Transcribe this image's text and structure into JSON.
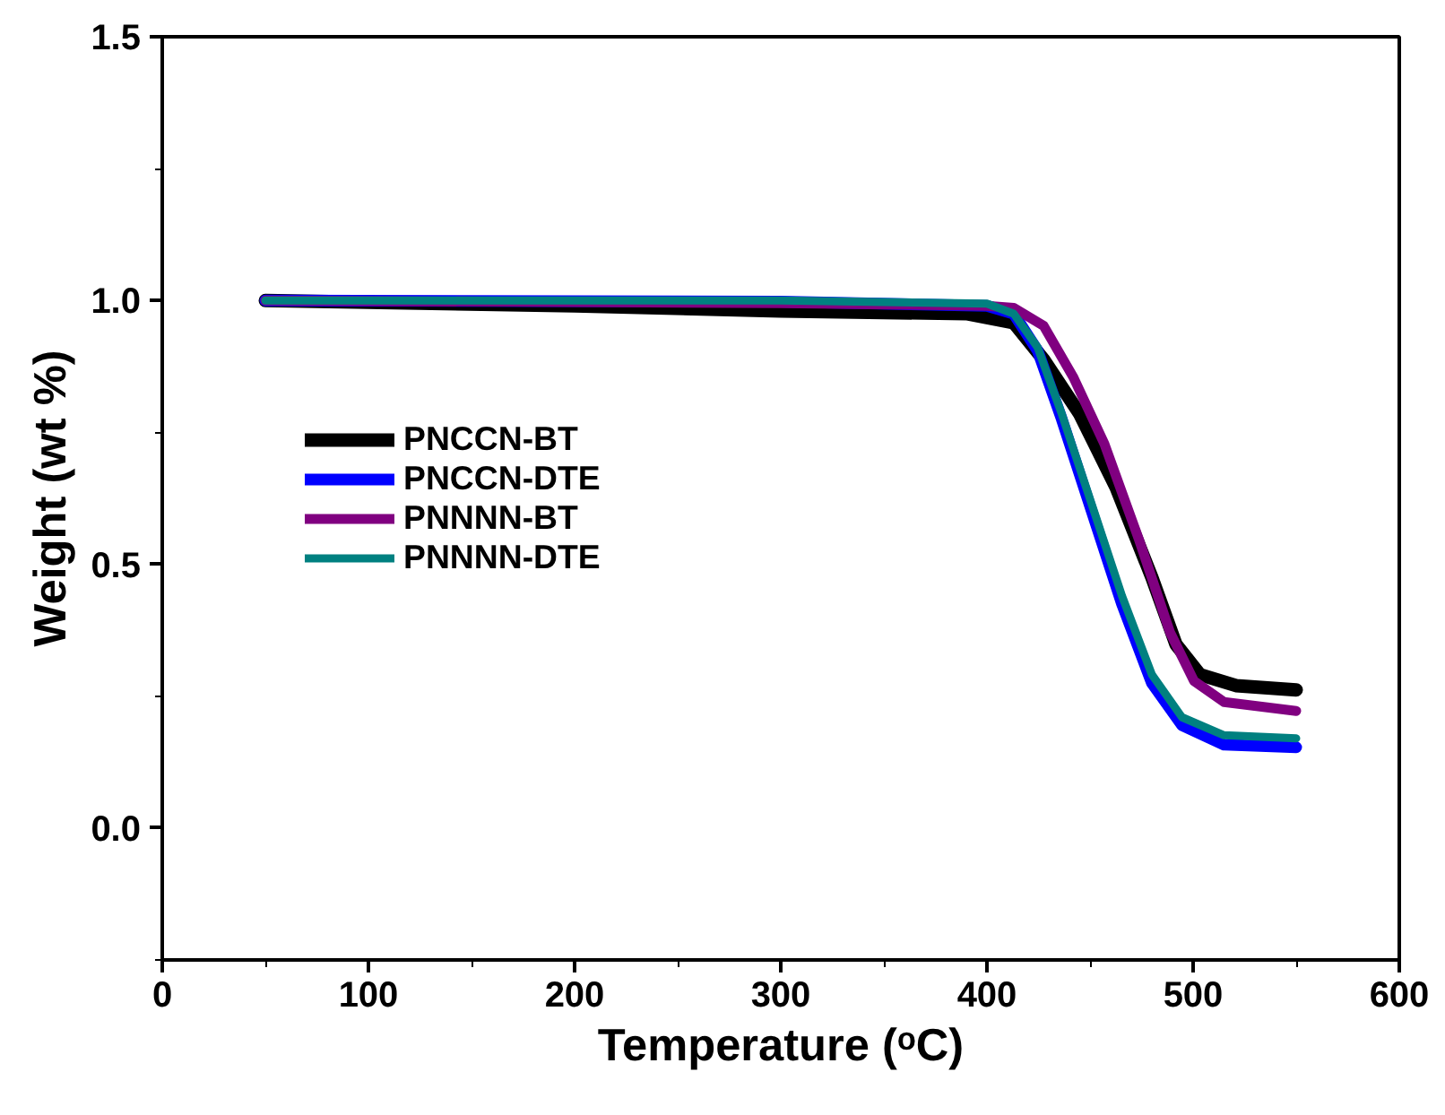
{
  "chart_data": {
    "type": "line",
    "xlabel": "Temperature (ᵒC)",
    "ylabel": "Weight (wt %)",
    "xlim": [
      0,
      600
    ],
    "xticks": [
      0,
      100,
      200,
      300,
      400,
      500,
      600
    ],
    "ylim": [
      -0.25,
      1.5
    ],
    "yticks": [
      {
        "value": 0,
        "label": "0.0"
      },
      {
        "value": 0.5,
        "label": "0.5"
      },
      {
        "value": 1,
        "label": "1.0"
      },
      {
        "value": 1.5,
        "label": "1.5"
      }
    ],
    "grid": false,
    "legend": "left",
    "marker": "none",
    "line_style": "solid",
    "series": [
      {
        "name": "PNCCN-BT",
        "color": "#000000",
        "x": [
          50,
          200,
          300,
          390,
          413,
          427.5,
          445,
          462.5,
          480,
          491.7,
          503.3,
          520.8,
          550
        ],
        "values": [
          1.0,
          0.99,
          0.98,
          0.975,
          0.958,
          0.888,
          0.785,
          0.647,
          0.475,
          0.348,
          0.291,
          0.27,
          0.262
        ]
      },
      {
        "name": "PNCCN-DTE",
        "color": "#0000ff",
        "x": [
          50,
          300,
          400,
          413,
          424.6,
          436.3,
          450.9,
          465.5,
          480,
          494.6,
          515,
          550
        ],
        "values": [
          1.0,
          0.998,
          0.99,
          0.975,
          0.905,
          0.775,
          0.6,
          0.425,
          0.275,
          0.195,
          0.158,
          0.153
        ]
      },
      {
        "name": "PNNNN-BT",
        "color": "#800080",
        "x": [
          50,
          300,
          400,
          413,
          427.5,
          442,
          457,
          474,
          488.8,
          500.4,
          515,
          550
        ],
        "values": [
          1.0,
          0.995,
          0.99,
          0.986,
          0.952,
          0.854,
          0.728,
          0.544,
          0.371,
          0.279,
          0.239,
          0.222
        ]
      },
      {
        "name": "PNNNN-DTE",
        "color": "#008080",
        "x": [
          50,
          300,
          400,
          413,
          424.6,
          436.3,
          450.9,
          465.5,
          480,
          494.6,
          515,
          550
        ],
        "values": [
          1.0,
          1.0,
          0.994,
          0.975,
          0.911,
          0.785,
          0.613,
          0.44,
          0.291,
          0.21,
          0.176,
          0.17
        ]
      }
    ]
  }
}
